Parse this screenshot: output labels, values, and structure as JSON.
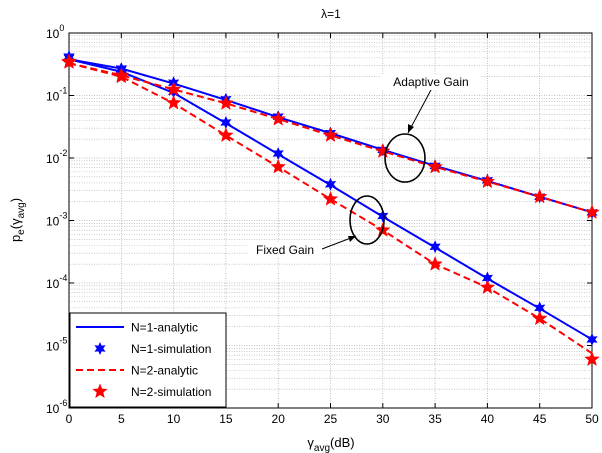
{
  "chart_data": {
    "type": "line",
    "title": "λ=1",
    "xlabel_main": "γ",
    "xlabel_sub": "avg",
    "xlabel_suffix": "(dB)",
    "ylabel_main": "p",
    "ylabel_sub": "e",
    "ylabel_paren_open": "(γ",
    "ylabel_paren_sub": "avg",
    "ylabel_paren_close": ")",
    "xlim": [
      0,
      50
    ],
    "ylim": [
      1e-06,
      1
    ],
    "yscale": "log",
    "grid": true,
    "x_ticks": [
      0,
      5,
      10,
      15,
      20,
      25,
      30,
      35,
      40,
      45,
      50
    ],
    "x_tick_labels": [
      "0",
      "5",
      "10",
      "15",
      "20",
      "25",
      "30",
      "35",
      "40",
      "45",
      "50"
    ],
    "y_ticks": [
      {
        "base": "10",
        "exp": "0",
        "value": 1
      },
      {
        "base": "10",
        "exp": "-1",
        "value": 0.1
      },
      {
        "base": "10",
        "exp": "-2",
        "value": 0.01
      },
      {
        "base": "10",
        "exp": "-3",
        "value": 0.001
      },
      {
        "base": "10",
        "exp": "-4",
        "value": 0.0001
      },
      {
        "base": "10",
        "exp": "-5",
        "value": 1e-05
      },
      {
        "base": "10",
        "exp": "-6",
        "value": 1e-06
      }
    ],
    "x": [
      0,
      5,
      10,
      15,
      20,
      25,
      30,
      35,
      40,
      45,
      50
    ],
    "series": [
      {
        "name": "N=1-analytic",
        "style": "line",
        "color": "#0000ff",
        "dash": "",
        "group": "fixed",
        "values": [
          0.38,
          0.24,
          0.11,
          0.036,
          0.0115,
          0.0037,
          0.00115,
          0.00037,
          0.000118,
          3.9e-05,
          1.25e-05
        ]
      },
      {
        "name": "N=1-analytic",
        "style": "line",
        "color": "#0000ff",
        "dash": "",
        "group": "adaptive",
        "legend": false,
        "values": [
          0.38,
          0.27,
          0.155,
          0.085,
          0.045,
          0.025,
          0.0135,
          0.0075,
          0.0043,
          0.0024,
          0.00135
        ]
      },
      {
        "name": "N=1-simulation",
        "style": "marker",
        "marker": "star6",
        "color": "#0000ff",
        "group": "fixed",
        "values": [
          0.4,
          0.26,
          0.115,
          0.037,
          0.0118,
          0.0038,
          0.00118,
          0.00038,
          0.00012,
          4e-05,
          1.25e-05
        ]
      },
      {
        "name": "N=1-simulation",
        "style": "marker",
        "marker": "star6",
        "color": "#0000ff",
        "group": "adaptive",
        "legend": false,
        "values": [
          0.42,
          0.27,
          0.16,
          0.087,
          0.046,
          0.025,
          0.0135,
          0.0075,
          0.0044,
          0.0024,
          0.00135
        ]
      },
      {
        "name": "N=2-analytic",
        "style": "line",
        "color": "#ff0000",
        "dash": "7,4",
        "group": "fixed",
        "values": [
          0.33,
          0.2,
          0.075,
          0.023,
          0.0072,
          0.0022,
          0.0007,
          0.0002,
          8.5e-05,
          2.7e-05,
          7.5e-06
        ]
      },
      {
        "name": "N=2-analytic",
        "style": "line",
        "color": "#ff0000",
        "dash": "7,4",
        "group": "adaptive",
        "legend": false,
        "values": [
          0.33,
          0.21,
          0.125,
          0.075,
          0.042,
          0.023,
          0.0128,
          0.0072,
          0.0042,
          0.0024,
          0.00135
        ]
      },
      {
        "name": "N=2-simulation",
        "style": "marker",
        "marker": "star5",
        "color": "#ff0000",
        "group": "fixed",
        "values": [
          0.34,
          0.2,
          0.076,
          0.023,
          0.0072,
          0.0022,
          0.0007,
          0.0002,
          8.5e-05,
          2.7e-05,
          6e-06
        ]
      },
      {
        "name": "N=2-simulation",
        "style": "marker",
        "marker": "star5",
        "color": "#ff0000",
        "group": "adaptive",
        "legend": false,
        "values": [
          0.35,
          0.21,
          0.125,
          0.075,
          0.042,
          0.023,
          0.0128,
          0.0072,
          0.0042,
          0.0024,
          0.00135
        ]
      }
    ],
    "legend": {
      "position": "bottom-left",
      "entries": [
        {
          "label": "N=1-analytic",
          "kind": "line",
          "color": "#0000ff",
          "dash": ""
        },
        {
          "label": "N=1-simulation",
          "kind": "marker",
          "marker": "star6",
          "color": "#0000ff"
        },
        {
          "label": "N=2-analytic",
          "kind": "line",
          "color": "#ff0000",
          "dash": "7,4"
        },
        {
          "label": "N=2-simulation",
          "kind": "marker",
          "marker": "star5",
          "color": "#ff0000"
        }
      ]
    },
    "annotations": [
      {
        "text": "Adaptive Gain"
      },
      {
        "text": "Fixed Gain"
      }
    ]
  }
}
